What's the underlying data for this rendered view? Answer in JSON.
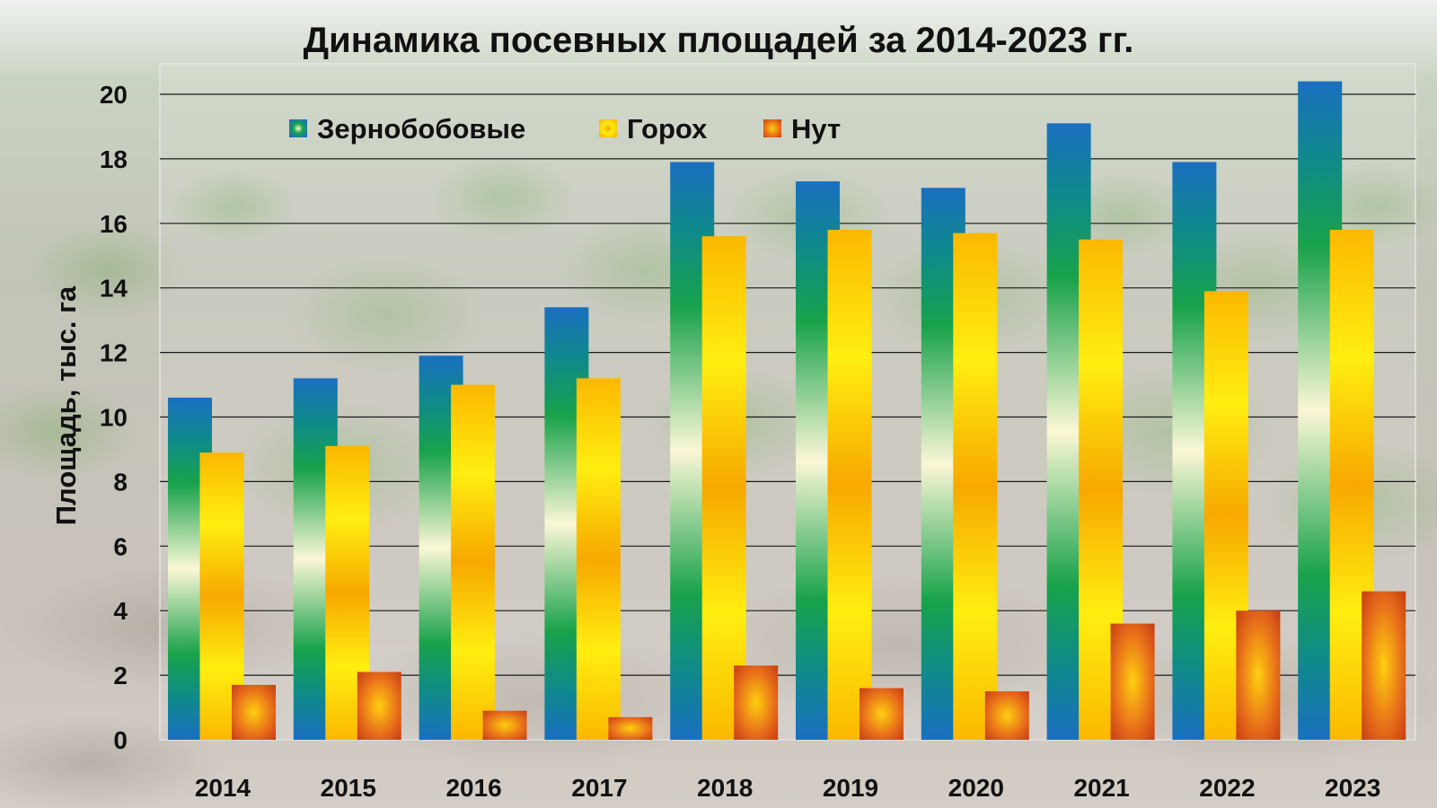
{
  "chart_data": {
    "type": "bar",
    "title": "Динамика посевных площадей за 2014-2023 гг.",
    "xlabel": "",
    "ylabel": "Площадь, тыс. га",
    "ylim": [
      0,
      20
    ],
    "yticks": [
      0,
      2,
      4,
      6,
      8,
      10,
      12,
      14,
      16,
      18,
      20
    ],
    "grid": true,
    "legend_position": "top-left",
    "categories": [
      "2014",
      "2015",
      "2016",
      "2017",
      "2018",
      "2019",
      "2020",
      "2021",
      "2022",
      "2023"
    ],
    "series": [
      {
        "name": "Зернобобовые",
        "color": "#1f77c4",
        "values": [
          10.6,
          11.2,
          11.9,
          13.4,
          17.9,
          17.3,
          17.1,
          19.1,
          17.9,
          20.4
        ]
      },
      {
        "name": "Горох",
        "color": "#f5b800",
        "values": [
          8.9,
          9.1,
          11.0,
          11.2,
          15.6,
          15.8,
          15.7,
          15.5,
          13.9,
          15.8
        ]
      },
      {
        "name": "Нут",
        "color": "#d44a10",
        "values": [
          1.7,
          2.1,
          0.9,
          0.7,
          2.3,
          1.6,
          1.5,
          3.6,
          4.0,
          4.6
        ]
      }
    ]
  }
}
